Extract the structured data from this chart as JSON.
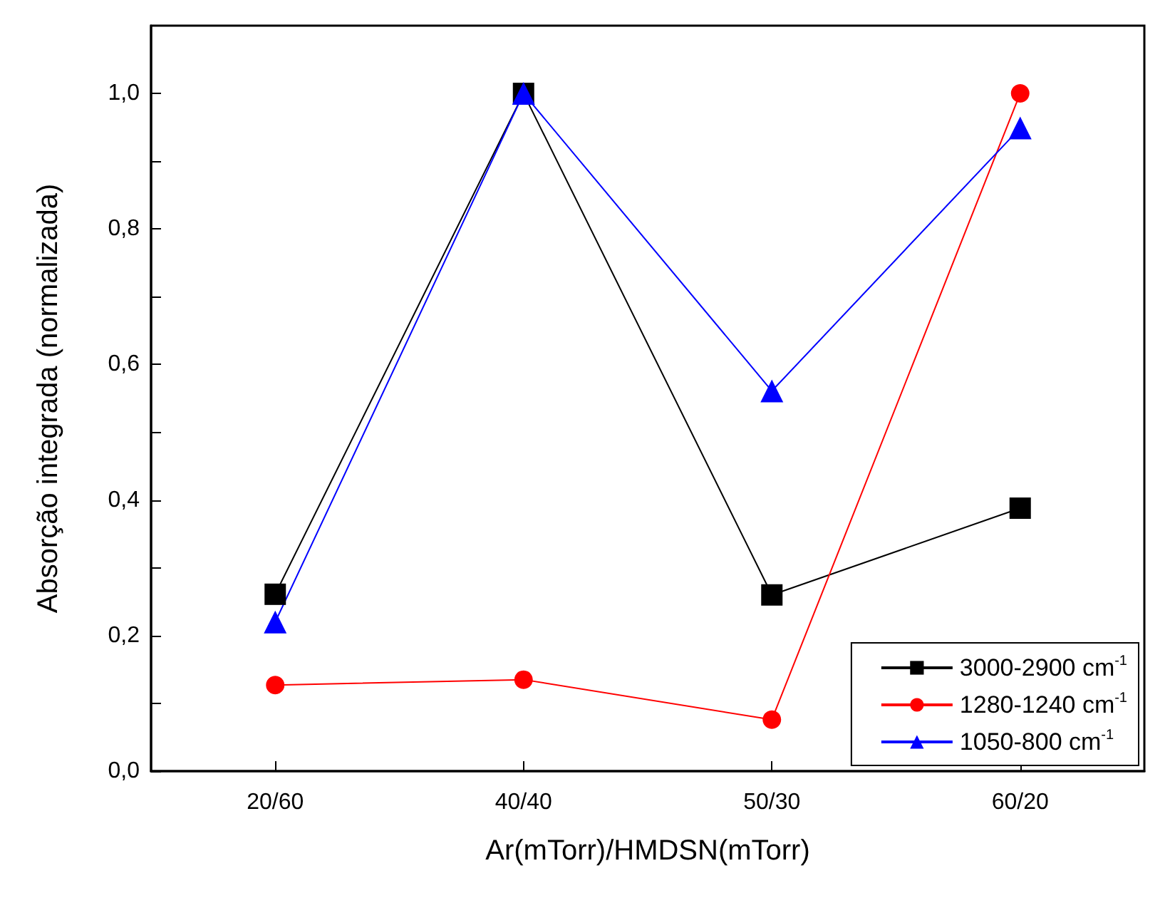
{
  "chart_data": {
    "type": "line",
    "xlabel": "Ar(mTorr)/HMDSN(mTorr)",
    "ylabel": "Absorção integrada (normalizada)",
    "categories": [
      "20/60",
      "40/40",
      "50/30",
      "60/20"
    ],
    "series": [
      {
        "name": "3000-2900 cm$^{-1}$",
        "color": "#000000",
        "marker": "square",
        "values": [
          0.261,
          1.0,
          0.26,
          0.388
        ]
      },
      {
        "name": "1280-1240 cm$^{-1}$",
        "color": "#ff0000",
        "marker": "circle",
        "values": [
          0.127,
          0.135,
          0.076,
          1.0
        ]
      },
      {
        "name": "1050-800 cm$^{-1}$",
        "color": "#0000ff",
        "marker": "triangle",
        "values": [
          0.22,
          1.0,
          0.561,
          0.949
        ]
      }
    ],
    "ylim": [
      0,
      1.1
    ],
    "yticks": [
      {
        "value": 0,
        "label": "0,0"
      },
      {
        "value": 0.1,
        "label": null
      },
      {
        "value": 0.2,
        "label": "0,2"
      },
      {
        "value": 0.3,
        "label": null
      },
      {
        "value": 0.4,
        "label": "0,4"
      },
      {
        "value": 0.5,
        "label": null
      },
      {
        "value": 0.6,
        "label": "0,6"
      },
      {
        "value": 0.7,
        "label": null
      },
      {
        "value": 0.8,
        "label": "0,8"
      },
      {
        "value": 0.9,
        "label": null
      },
      {
        "value": 1.0,
        "label": "1,0"
      }
    ],
    "grid": false,
    "legend": "bottom right",
    "line_style": "solid"
  }
}
